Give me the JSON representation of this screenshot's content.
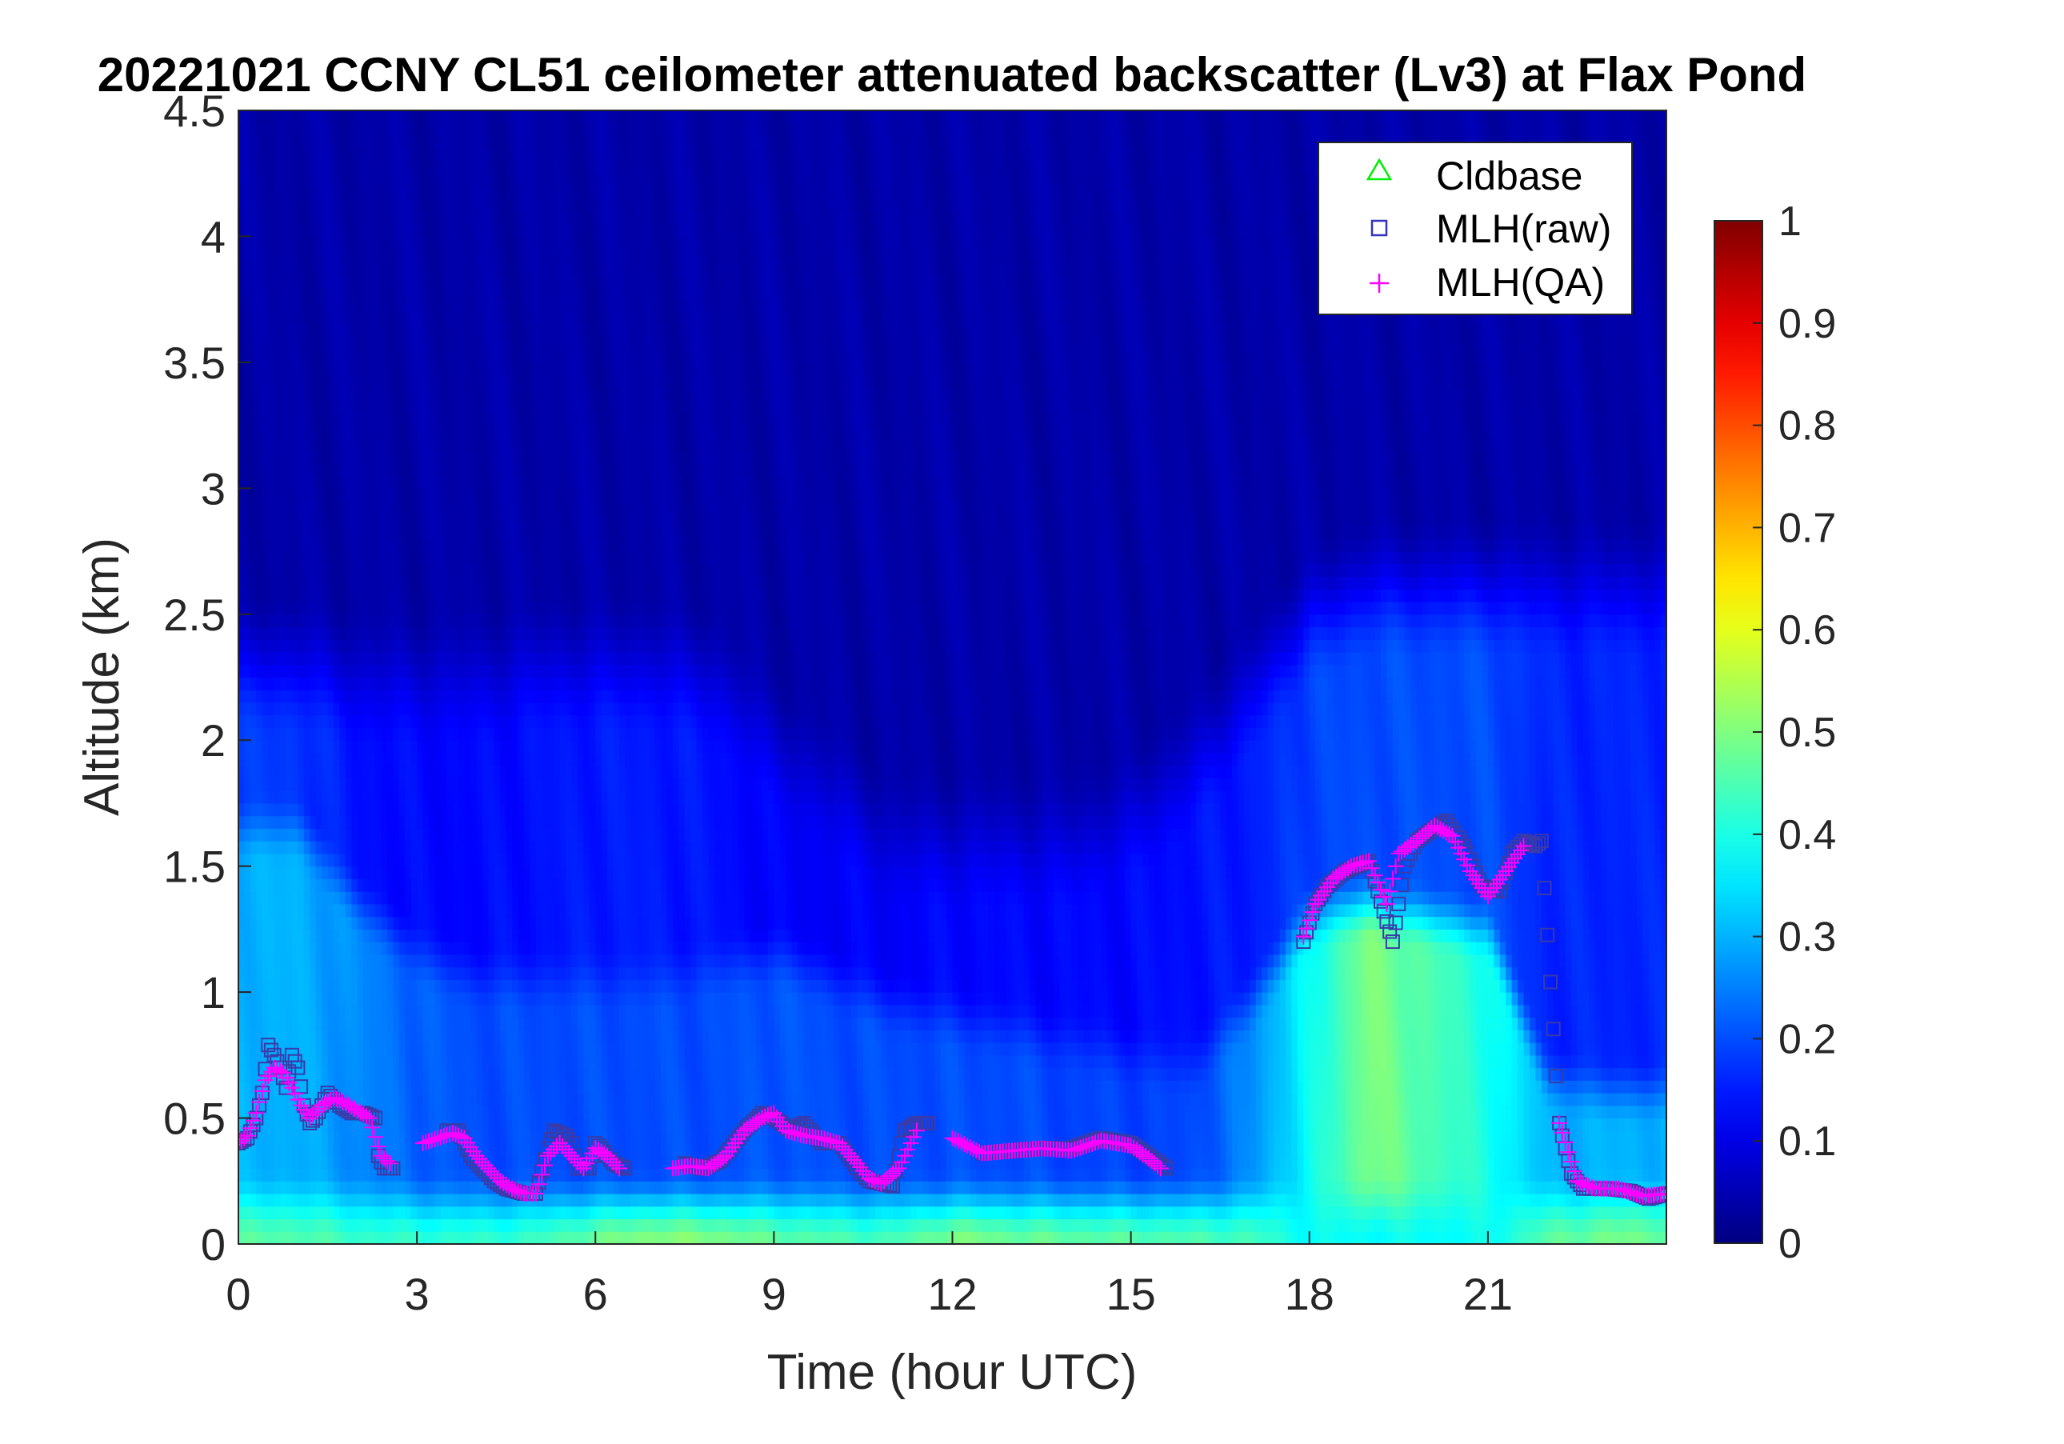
{
  "chart_data": {
    "type": "heatmap",
    "title": "20221021 CCNY CL51 ceilometer attenuated backscatter (Lv3) at Flax Pond",
    "xlabel": "Time (hour UTC)",
    "ylabel": "Altitude (km)",
    "xlim": [
      0,
      24
    ],
    "ylim": [
      0,
      4.5
    ],
    "x_ticks": [
      0,
      3,
      6,
      9,
      12,
      15,
      18,
      21
    ],
    "x_tick_labels": [
      "0",
      "3",
      "6",
      "9",
      "12",
      "15",
      "18",
      "21"
    ],
    "y_ticks": [
      0,
      0.5,
      1,
      1.5,
      2,
      2.5,
      3,
      3.5,
      4,
      4.5
    ],
    "y_tick_labels": [
      "0",
      "0.5",
      "1",
      "1.5",
      "2",
      "2.5",
      "3",
      "3.5",
      "4",
      "4.5"
    ],
    "colorbar": {
      "colormap": "jet",
      "range": [
        0,
        1
      ],
      "ticks": [
        0,
        0.1,
        0.2,
        0.3,
        0.4,
        0.5,
        0.6,
        0.7,
        0.8,
        0.9,
        1
      ],
      "tick_labels": [
        "0",
        "0.1",
        "0.2",
        "0.3",
        "0.4",
        "0.5",
        "0.6",
        "0.7",
        "0.8",
        "0.9",
        "1"
      ]
    },
    "legend": {
      "location": "top-right",
      "entries": [
        {
          "label": "Cldbase",
          "marker": "triangle",
          "color": "#00ff00"
        },
        {
          "label": "MLH(raw)",
          "marker": "square",
          "color": "#3333bb"
        },
        {
          "label": "MLH(QA)",
          "marker": "plus",
          "color": "#ff00ff"
        }
      ]
    },
    "heatmap_profile": {
      "hours": [
        0,
        1,
        2,
        3,
        4,
        5,
        6,
        7,
        8,
        9,
        10,
        11,
        12,
        13,
        14,
        15,
        16,
        17,
        18,
        19,
        20,
        21,
        22,
        23,
        24
      ],
      "surface_value": [
        0.46,
        0.46,
        0.43,
        0.42,
        0.42,
        0.43,
        0.48,
        0.51,
        0.5,
        0.47,
        0.45,
        0.44,
        0.5,
        0.48,
        0.47,
        0.46,
        0.45,
        0.44,
        0.38,
        0.38,
        0.38,
        0.38,
        0.46,
        0.49,
        0.48
      ],
      "layer_top_km": [
        1.5,
        1.5,
        1.2,
        1.0,
        0.9,
        0.9,
        0.9,
        0.9,
        0.95,
        1.0,
        0.9,
        0.8,
        0.75,
        0.7,
        0.65,
        0.6,
        0.55,
        0.8,
        1.15,
        1.2,
        1.15,
        1.1,
        0.5,
        0.45,
        0.45
      ],
      "layer_value": [
        0.3,
        0.3,
        0.26,
        0.22,
        0.2,
        0.2,
        0.2,
        0.2,
        0.2,
        0.21,
        0.2,
        0.2,
        0.2,
        0.2,
        0.19,
        0.19,
        0.19,
        0.26,
        0.38,
        0.5,
        0.45,
        0.4,
        0.3,
        0.3,
        0.3
      ],
      "mid_top_km": [
        2.0,
        2.0,
        1.95,
        1.95,
        1.95,
        2.0,
        2.0,
        2.0,
        1.95,
        1.7,
        1.5,
        1.3,
        1.3,
        1.3,
        1.3,
        1.4,
        1.6,
        1.9,
        2.2,
        2.3,
        2.3,
        2.3,
        2.3,
        2.3,
        2.3
      ],
      "mid_value": [
        0.18,
        0.18,
        0.14,
        0.13,
        0.13,
        0.14,
        0.15,
        0.15,
        0.14,
        0.12,
        0.12,
        0.12,
        0.13,
        0.13,
        0.13,
        0.13,
        0.14,
        0.15,
        0.19,
        0.2,
        0.2,
        0.2,
        0.16,
        0.16,
        0.16
      ],
      "upper_value": 0.04
    },
    "series": [
      {
        "name": "MLH(raw)",
        "x": [
          0,
          0.15,
          0.3,
          0.4,
          0.5,
          0.6,
          0.7,
          0.8,
          0.9,
          1.0,
          1.1,
          1.2,
          1.3,
          1.5,
          1.7,
          1.9,
          2.1,
          2.3,
          2.35,
          2.45,
          2.6,
          3.5,
          3.7,
          3.9,
          4.1,
          4.3,
          4.5,
          4.8,
          5.0,
          5.2,
          5.3,
          5.5,
          5.6,
          5.7,
          5.9,
          6.0,
          6.1,
          6.3,
          6.5,
          7.5,
          7.8,
          8.1,
          8.5,
          8.8,
          9.0,
          9.3,
          9.5,
          9.8,
          10.1,
          10.4,
          10.6,
          10.8,
          11.0,
          11.1,
          11.2,
          11.4,
          11.6,
          12.5,
          13.0,
          13.5,
          14.0,
          14.5,
          15.0,
          15.3,
          15.6,
          17.9,
          18.1,
          18.3,
          18.6,
          19.0,
          19.4,
          19.6,
          19.8,
          20.1,
          20.3,
          20.6,
          20.9,
          21.2,
          21.4,
          21.6,
          21.8,
          21.9,
          22.2,
          22.4,
          22.6,
          23.0,
          23.4,
          23.7,
          24.0
        ],
        "y": [
          0.4,
          0.42,
          0.5,
          0.6,
          0.79,
          0.75,
          0.7,
          0.62,
          0.75,
          0.7,
          0.55,
          0.48,
          0.5,
          0.6,
          0.55,
          0.52,
          0.52,
          0.5,
          0.35,
          0.3,
          0.3,
          0.45,
          0.45,
          0.35,
          0.3,
          0.25,
          0.22,
          0.2,
          0.2,
          0.38,
          0.45,
          0.43,
          0.4,
          0.3,
          0.3,
          0.4,
          0.38,
          0.32,
          0.3,
          0.32,
          0.3,
          0.33,
          0.45,
          0.52,
          0.5,
          0.45,
          0.48,
          0.4,
          0.4,
          0.3,
          0.25,
          0.24,
          0.23,
          0.35,
          0.45,
          0.48,
          0.48,
          0.36,
          0.37,
          0.38,
          0.38,
          0.42,
          0.4,
          0.35,
          0.3,
          1.2,
          1.35,
          1.42,
          1.48,
          1.52,
          1.2,
          1.5,
          1.6,
          1.65,
          1.68,
          1.58,
          1.42,
          1.4,
          1.55,
          1.6,
          1.58,
          1.6,
          0.48,
          0.28,
          0.22,
          0.22,
          0.21,
          0.18,
          0.2
        ]
      },
      {
        "name": "MLH(QA)",
        "x": [
          0,
          0.15,
          0.3,
          0.45,
          0.6,
          0.75,
          0.9,
          1.05,
          1.2,
          1.4,
          1.6,
          1.8,
          2.0,
          2.2,
          2.4,
          2.55,
          3.1,
          3.6,
          3.8,
          4.0,
          4.2,
          4.4,
          4.6,
          4.8,
          5.0,
          5.2,
          5.4,
          5.6,
          5.8,
          6.0,
          6.2,
          6.4,
          7.3,
          7.6,
          7.9,
          8.2,
          8.5,
          8.8,
          9.0,
          9.2,
          9.5,
          9.8,
          10.1,
          10.4,
          10.6,
          10.8,
          11.1,
          11.4,
          12.0,
          12.5,
          13.0,
          13.5,
          14.0,
          14.5,
          15.0,
          15.3,
          15.5,
          17.9,
          18.1,
          18.4,
          18.7,
          19.0,
          19.3,
          19.5,
          19.8,
          20.1,
          20.4,
          20.7,
          21.0,
          21.3,
          21.6,
          22.2,
          22.5,
          22.8,
          23.2,
          23.6,
          24.0
        ],
        "y": [
          0.4,
          0.43,
          0.52,
          0.65,
          0.7,
          0.68,
          0.62,
          0.55,
          0.5,
          0.55,
          0.58,
          0.56,
          0.53,
          0.5,
          0.35,
          0.32,
          0.4,
          0.44,
          0.42,
          0.35,
          0.3,
          0.25,
          0.22,
          0.2,
          0.2,
          0.35,
          0.4,
          0.35,
          0.3,
          0.38,
          0.35,
          0.3,
          0.3,
          0.31,
          0.3,
          0.35,
          0.45,
          0.5,
          0.52,
          0.45,
          0.43,
          0.42,
          0.4,
          0.32,
          0.26,
          0.24,
          0.3,
          0.45,
          0.42,
          0.36,
          0.37,
          0.38,
          0.37,
          0.41,
          0.39,
          0.34,
          0.3,
          1.22,
          1.35,
          1.45,
          1.5,
          1.52,
          1.35,
          1.55,
          1.6,
          1.66,
          1.62,
          1.48,
          1.38,
          1.48,
          1.58,
          0.48,
          0.25,
          0.22,
          0.22,
          0.19,
          0.2
        ]
      },
      {
        "name": "Cldbase",
        "x": [],
        "y": []
      }
    ]
  }
}
